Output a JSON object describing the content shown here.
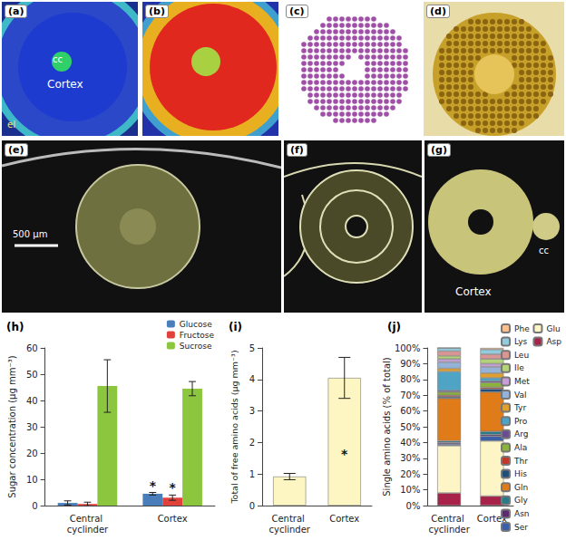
{
  "images": [
    {
      "label": "(a)",
      "texts": [
        "cc",
        "Cortex",
        "el"
      ]
    },
    {
      "label": "(b)"
    },
    {
      "label": "(c)"
    },
    {
      "label": "(d)"
    },
    {
      "label": "(e)",
      "texts": [
        "500 µm"
      ]
    },
    {
      "label": "(f)"
    },
    {
      "label": "(g)",
      "texts": [
        "cc",
        "Cortex"
      ]
    }
  ],
  "chart_data": [
    {
      "type": "bar",
      "title": "(h)",
      "categories": [
        "Central cyclinder",
        "Cortex"
      ],
      "series": [
        {
          "name": "Glucose",
          "color": "#4a7ebb",
          "values": [
            1.0,
            4.5
          ],
          "errors": [
            0.8,
            0.5
          ]
        },
        {
          "name": "Fructose",
          "color": "#e0413a",
          "values": [
            0.6,
            3.0
          ],
          "errors": [
            0.7,
            1.0
          ]
        },
        {
          "name": "Sucrose",
          "color": "#8cc63f",
          "values": [
            45.5,
            44.5
          ],
          "errors": [
            10,
            2.7
          ]
        }
      ],
      "ylabel": "Sugar concentration (µg mm⁻³)",
      "ylim": [
        0,
        60
      ],
      "yticks": [
        0,
        10,
        20,
        30,
        40,
        50,
        60
      ],
      "grid": false,
      "legend": "upper right",
      "annotations": [
        {
          "text": "*",
          "series": "Glucose",
          "category": "Cortex"
        },
        {
          "text": "*",
          "series": "Fructose",
          "category": "Cortex"
        }
      ]
    },
    {
      "type": "bar",
      "title": "(i)",
      "categories": [
        "Central cyclinder",
        "Cortex"
      ],
      "values": [
        0.92,
        4.05
      ],
      "errors": [
        0.1,
        0.65
      ],
      "color": "#fdf6c3",
      "ylabel": "Total of free amino acids (µg mm⁻³)",
      "ylim": [
        0,
        5
      ],
      "yticks": [
        0,
        1,
        2,
        3,
        4,
        5
      ],
      "grid": false,
      "annotations": [
        {
          "text": "*",
          "category": "Cortex"
        }
      ]
    },
    {
      "type": "bar",
      "title": "(j)",
      "stacked": true,
      "categories": [
        "Central cyclinder",
        "Cortex"
      ],
      "series": [
        {
          "name": "Asp",
          "color": "#a8234a",
          "values": [
            8,
            6
          ]
        },
        {
          "name": "Glu",
          "color": "#fdf5c5",
          "values": [
            30,
            35
          ]
        },
        {
          "name": "Ser",
          "color": "#3a5fa8",
          "values": [
            1,
            3
          ]
        },
        {
          "name": "Asn",
          "color": "#5a2c6e",
          "values": [
            1,
            1
          ]
        },
        {
          "name": "Gly",
          "color": "#2a7a8a",
          "values": [
            1,
            2
          ]
        },
        {
          "name": "Gln",
          "color": "#e07b1a",
          "values": [
            27,
            25
          ]
        },
        {
          "name": "His",
          "color": "#1f4e79",
          "values": [
            1,
            2
          ]
        },
        {
          "name": "Thr",
          "color": "#c0392b",
          "values": [
            1,
            1
          ]
        },
        {
          "name": "Ala",
          "color": "#8cb43c",
          "values": [
            2,
            3
          ]
        },
        {
          "name": "Arg",
          "color": "#6a4c93",
          "values": [
            1,
            1
          ]
        },
        {
          "name": "Pro",
          "color": "#4fa3c4",
          "values": [
            12,
            2
          ]
        },
        {
          "name": "Tyr",
          "color": "#e0a030",
          "values": [
            2,
            3
          ]
        },
        {
          "name": "Val",
          "color": "#95b3d7",
          "values": [
            4,
            4
          ]
        },
        {
          "name": "Met",
          "color": "#c6a0d4",
          "values": [
            2,
            2
          ]
        },
        {
          "name": "Ile",
          "color": "#b4d27a",
          "values": [
            2,
            3
          ]
        },
        {
          "name": "Leu",
          "color": "#d99694",
          "values": [
            3,
            3
          ]
        },
        {
          "name": "Lys",
          "color": "#93cddd",
          "values": [
            2,
            3
          ]
        },
        {
          "name": "Phe",
          "color": "#fac090",
          "values": [
            0,
            1
          ]
        }
      ],
      "ylabel": "Single amino acids (% of total)",
      "ylim": [
        0,
        100
      ],
      "yticks": [
        {
          "value": 0,
          "label": "0%"
        },
        {
          "value": 10,
          "label": "10%"
        },
        {
          "value": 20,
          "label": "20%"
        },
        {
          "value": 30,
          "label": "30%"
        },
        {
          "value": 40,
          "label": "40%"
        },
        {
          "value": 50,
          "label": "50%"
        },
        {
          "value": 60,
          "label": "60%"
        },
        {
          "value": 70,
          "label": "70%"
        },
        {
          "value": 80,
          "label": "80%"
        },
        {
          "value": 90,
          "label": "90%"
        },
        {
          "value": 100,
          "label": "100%"
        }
      ],
      "grid": false,
      "legend": "right"
    }
  ]
}
